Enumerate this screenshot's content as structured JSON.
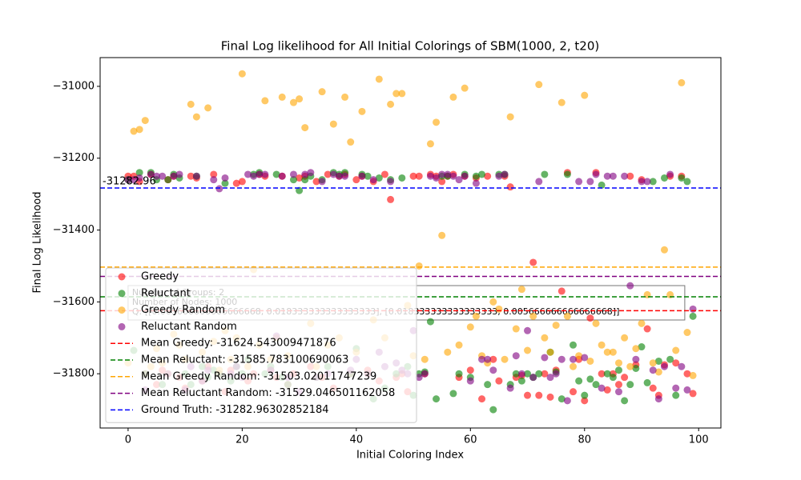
{
  "chart_data": {
    "type": "scatter",
    "title": "Final Log likelihood for All Initial Colorings of SBM(1000, 2, t20)",
    "x_label": "Initial Coloring Index",
    "y_label": "Final Log Likelihood",
    "xlim": [
      -4.9,
      103.9
    ],
    "ylim": [
      -31951,
      -30920
    ],
    "xticks": [
      0,
      20,
      40,
      60,
      80,
      100
    ],
    "yticks": [
      {
        "value": -31800,
        "label": "−31800"
      },
      {
        "value": -31600,
        "label": "−31600"
      },
      {
        "value": -31400,
        "label": "−31400"
      },
      {
        "value": -31200,
        "label": "−31200"
      },
      {
        "value": -31000,
        "label": "−31000"
      }
    ],
    "x": [
      0,
      1,
      2,
      3,
      4,
      5,
      6,
      7,
      8,
      9,
      10,
      11,
      12,
      13,
      14,
      15,
      16,
      17,
      18,
      19,
      20,
      21,
      22,
      23,
      24,
      25,
      26,
      27,
      28,
      29,
      30,
      31,
      32,
      33,
      34,
      35,
      36,
      37,
      38,
      39,
      40,
      41,
      42,
      43,
      44,
      45,
      46,
      47,
      48,
      49,
      50,
      51,
      52,
      53,
      54,
      55,
      56,
      57,
      58,
      59,
      60,
      61,
      62,
      63,
      64,
      65,
      66,
      67,
      68,
      69,
      70,
      71,
      72,
      73,
      74,
      75,
      76,
      77,
      78,
      79,
      80,
      81,
      82,
      83,
      84,
      85,
      86,
      87,
      88,
      89,
      90,
      91,
      92,
      93,
      94,
      95,
      96,
      97,
      98,
      99
    ],
    "series": [
      {
        "name": "Greedy",
        "color": "red",
        "values": [
          -31250,
          -31250,
          -31265,
          -31800,
          -31245,
          -31830,
          -31790,
          -31260,
          -31250,
          -31810,
          -31840,
          -31250,
          -31255,
          -31820,
          -31780,
          -31245,
          -31800,
          -31850,
          -31790,
          -31270,
          -31265,
          -31820,
          -31800,
          -31245,
          -31250,
          -31790,
          -31810,
          -31250,
          -31830,
          -31800,
          -31255,
          -31250,
          -31780,
          -31265,
          -31810,
          -31245,
          -31840,
          -31250,
          -31245,
          -31800,
          -31260,
          -31250,
          -31790,
          -31265,
          -31820,
          -31245,
          -31315,
          -31810,
          -31800,
          -31850,
          -31250,
          -31250,
          -31800,
          -31245,
          -31250,
          -31265,
          -31250,
          -31245,
          -31810,
          -31250,
          -31790,
          -31255,
          -31870,
          -31250,
          -31760,
          -31820,
          -31250,
          -31280,
          -31810,
          -31805,
          -31860,
          -31490,
          -31860,
          -31800,
          -31865,
          -31790,
          -31570,
          -31240,
          -31850,
          -31760,
          -31875,
          -31645,
          -31240,
          -31800,
          -31845,
          -31800,
          -31830,
          -31810,
          -31250,
          -31775,
          -31260,
          -31675,
          -31840,
          -31860,
          -31775,
          -31250,
          -31770,
          -31250,
          -31800,
          -31855
        ]
      },
      {
        "name": "Reluctant",
        "color": "green",
        "values": [
          -31260,
          -31735,
          -31240,
          -31800,
          -31240,
          -31260,
          -31830,
          -31260,
          -31245,
          -31255,
          -31800,
          -31830,
          -31250,
          -31780,
          -31810,
          -31790,
          -31800,
          -31270,
          -31820,
          -31780,
          -31800,
          -31760,
          -31245,
          -31240,
          -31800,
          -31780,
          -31245,
          -31810,
          -31830,
          -31260,
          -31290,
          -31260,
          -31250,
          -31810,
          -31260,
          -31780,
          -31240,
          -31245,
          -31240,
          -31800,
          -31730,
          -31245,
          -31250,
          -31870,
          -31255,
          -31840,
          -31260,
          -31800,
          -31255,
          -31780,
          -31860,
          -31800,
          -31795,
          -31655,
          -31870,
          -31250,
          -31250,
          -31855,
          -31800,
          -31245,
          -31810,
          -31250,
          -31245,
          -31830,
          -31900,
          -31245,
          -31245,
          -31830,
          -31800,
          -31820,
          -31800,
          -31810,
          -31800,
          -31245,
          -31740,
          -31795,
          -31870,
          -31245,
          -31720,
          -31820,
          -31860,
          -31815,
          -31830,
          -31275,
          -31800,
          -31810,
          -31790,
          -31875,
          -31830,
          -31785,
          -31725,
          -31825,
          -31265,
          -31765,
          -31255,
          -31760,
          -31860,
          -31255,
          -31265,
          -31640
        ]
      },
      {
        "name": "Greedy Random",
        "color": "orange",
        "values": [
          -31770,
          -31125,
          -31120,
          -31095,
          -31780,
          -31730,
          -31770,
          -31800,
          -31690,
          -31720,
          -31760,
          -31050,
          -31085,
          -31740,
          -31060,
          -31710,
          -31790,
          -31680,
          -31760,
          -31700,
          -30965,
          -31780,
          -31510,
          -31720,
          -31040,
          -31760,
          -31700,
          -31030,
          -31750,
          -31045,
          -31035,
          -31115,
          -31660,
          -31780,
          -31015,
          -31720,
          -31105,
          -31700,
          -31030,
          -31155,
          -31740,
          -31070,
          -31800,
          -31650,
          -30980,
          -31700,
          -31050,
          -31020,
          -31020,
          -31610,
          -31750,
          -31500,
          -31760,
          -31160,
          -31100,
          -31415,
          -31740,
          -31030,
          -31720,
          -31005,
          -31670,
          -31640,
          -31750,
          -31770,
          -31600,
          -31620,
          -31760,
          -31085,
          -31675,
          -31565,
          -31735,
          -31640,
          -30995,
          -31700,
          -31740,
          -31665,
          -31045,
          -31640,
          -31780,
          -31750,
          -31025,
          -31765,
          -31660,
          -31720,
          -31740,
          -31740,
          -31770,
          -31700,
          -31780,
          -31730,
          -31660,
          -31580,
          -31770,
          -31795,
          -31455,
          -31580,
          -31735,
          -30990,
          -31685,
          -31805
        ]
      },
      {
        "name": "Reluctant Random",
        "color": "purple",
        "values": [
          -31260,
          -31260,
          -31255,
          -31845,
          -31245,
          -31250,
          -31250,
          -31800,
          -31250,
          -31245,
          -31845,
          -31780,
          -31250,
          -31820,
          -31790,
          -31260,
          -31285,
          -31255,
          -31800,
          -31780,
          -31810,
          -31245,
          -31250,
          -31245,
          -31245,
          -31790,
          -31695,
          -31250,
          -31810,
          -31245,
          -31850,
          -31245,
          -31240,
          -31810,
          -31265,
          -31800,
          -31245,
          -31250,
          -31250,
          -31790,
          -31760,
          -31250,
          -31800,
          -31260,
          -31740,
          -31780,
          -31265,
          -31770,
          -31790,
          -31800,
          -31680,
          -31810,
          -31800,
          -31250,
          -31255,
          -31245,
          -31245,
          -31250,
          -31260,
          -31250,
          -31820,
          -31270,
          -31760,
          -31760,
          -31790,
          -31250,
          -31245,
          -31840,
          -31750,
          -31800,
          -31680,
          -31810,
          -31265,
          -31755,
          -31810,
          -31800,
          -31760,
          -31875,
          -31760,
          -31265,
          -31755,
          -31265,
          -31245,
          -31840,
          -31250,
          -31250,
          -31850,
          -31250,
          -31555,
          -31760,
          -31265,
          -31265,
          -31790,
          -31870,
          -31780,
          -31245,
          -31840,
          -31780,
          -31845,
          -31620
        ]
      }
    ],
    "hlines": [
      {
        "name": "Mean Greedy: -31624.543009471876",
        "value": -31624.543009471876,
        "color": "red"
      },
      {
        "name": "Mean Reluctant: -31585.783100690063",
        "value": -31585.783100690063,
        "color": "green"
      },
      {
        "name": "Mean Greedy Random: -31503.02011747239",
        "value": -31503.02011747239,
        "color": "orange"
      },
      {
        "name": "Mean Reluctant Random: -31529.046501162058",
        "value": -31529.046501162058,
        "color": "purple"
      },
      {
        "name": "Ground Truth: -31282.96302852184",
        "value": -31282.96302852184,
        "color": "blue"
      }
    ],
    "annotation": "-31282.96",
    "info_box": [
      "Number of Groups: 2",
      "Number of Nodes: 1000",
      "Q: [[0.005666666666666668, 0.018333333333333333], [0.018333333333333333, 0.005666666666666668]]"
    ],
    "legend": "lower left"
  }
}
